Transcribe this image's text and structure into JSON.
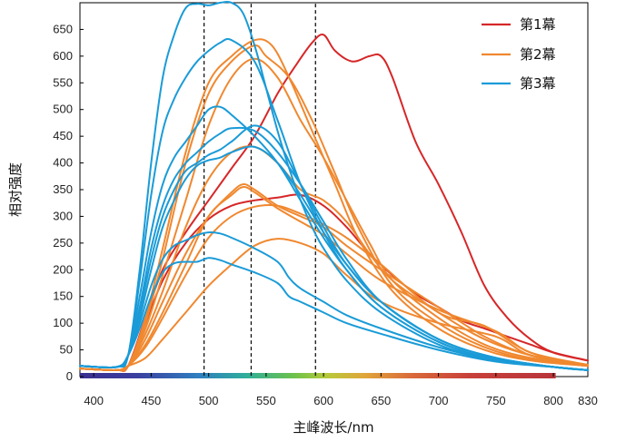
{
  "chart_data": {
    "type": "line",
    "title": "",
    "xlabel": "主峰波长/nm",
    "ylabel": "相对强度",
    "xlim": [
      388,
      830
    ],
    "ylim": [
      0,
      700
    ],
    "x_ticks": [
      400,
      450,
      500,
      550,
      600,
      650,
      700,
      750,
      800,
      830
    ],
    "y_ticks": [
      0,
      50,
      100,
      150,
      200,
      250,
      300,
      350,
      400,
      450,
      500,
      550,
      600,
      650
    ],
    "vertical_markers": [
      496,
      537,
      593
    ],
    "legend_position": "top-right",
    "legend": [
      {
        "name": "第1幕",
        "color": "#d62728"
      },
      {
        "name": "第2幕",
        "color": "#f0882f"
      },
      {
        "name": "第3幕",
        "color": "#1a9bd7"
      }
    ],
    "spectrum_bar": {
      "start": 388,
      "end": 802
    },
    "series": [
      {
        "name": "第1幕",
        "color": "#d62728",
        "x": [
          388,
          420,
          430,
          445,
          460,
          480,
          500,
          520,
          540,
          560,
          575,
          590,
          600,
          610,
          625,
          640,
          650,
          660,
          680,
          700,
          720,
          740,
          760,
          780,
          800,
          830
        ],
        "y": [
          15,
          12,
          20,
          110,
          200,
          270,
          330,
          390,
          450,
          530,
          580,
          625,
          640,
          610,
          590,
          600,
          600,
          560,
          440,
          360,
          270,
          170,
          110,
          70,
          45,
          30
        ]
      },
      {
        "name": "第1幕",
        "color": "#d62728",
        "x": [
          388,
          420,
          430,
          445,
          460,
          480,
          500,
          520,
          540,
          560,
          580,
          600,
          620,
          640,
          660,
          680,
          700,
          720,
          740,
          760,
          780,
          800,
          830
        ],
        "y": [
          15,
          12,
          20,
          100,
          180,
          250,
          295,
          320,
          330,
          335,
          340,
          320,
          280,
          230,
          190,
          155,
          130,
          105,
          90,
          75,
          60,
          45,
          30
        ]
      },
      {
        "name": "第2幕",
        "color": "#f0882f",
        "x": [
          388,
          420,
          430,
          445,
          460,
          480,
          500,
          520,
          540,
          555,
          570,
          590,
          610,
          630,
          660,
          700,
          740,
          780,
          830
        ],
        "y": [
          15,
          12,
          20,
          110,
          240,
          420,
          550,
          600,
          630,
          620,
          560,
          460,
          360,
          260,
          160,
          90,
          50,
          30,
          20
        ]
      },
      {
        "name": "第2幕",
        "color": "#f0882f",
        "x": [
          388,
          420,
          430,
          445,
          460,
          480,
          500,
          520,
          540,
          550,
          570,
          590,
          610,
          630,
          660,
          700,
          740,
          780,
          830
        ],
        "y": [
          15,
          12,
          20,
          100,
          220,
          400,
          530,
          590,
          620,
          600,
          560,
          480,
          380,
          280,
          170,
          100,
          55,
          32,
          20
        ]
      },
      {
        "name": "第2幕",
        "color": "#f0882f",
        "x": [
          388,
          420,
          430,
          445,
          460,
          480,
          500,
          520,
          540,
          560,
          580,
          600,
          620,
          640,
          660,
          700,
          740,
          780,
          830
        ],
        "y": [
          15,
          12,
          20,
          90,
          190,
          330,
          470,
          560,
          595,
          560,
          480,
          410,
          330,
          250,
          180,
          110,
          60,
          35,
          22
        ]
      },
      {
        "name": "第2幕",
        "color": "#f0882f",
        "x": [
          388,
          420,
          430,
          445,
          460,
          480,
          500,
          520,
          540,
          560,
          580,
          600,
          620,
          640,
          660,
          700,
          740,
          780,
          830
        ],
        "y": [
          15,
          12,
          20,
          80,
          160,
          280,
          370,
          420,
          430,
          400,
          350,
          330,
          290,
          230,
          180,
          120,
          70,
          40,
          22
        ]
      },
      {
        "name": "第2幕",
        "color": "#f0882f",
        "x": [
          388,
          420,
          430,
          445,
          460,
          480,
          500,
          520,
          530,
          540,
          560,
          580,
          600,
          620,
          650,
          700,
          740,
          780,
          830
        ],
        "y": [
          15,
          12,
          20,
          70,
          140,
          230,
          300,
          345,
          360,
          350,
          320,
          300,
          280,
          245,
          200,
          130,
          75,
          40,
          22
        ]
      },
      {
        "name": "第2幕",
        "color": "#f0882f",
        "x": [
          388,
          420,
          430,
          445,
          460,
          480,
          500,
          520,
          530,
          540,
          560,
          580,
          600,
          620,
          650,
          700,
          750,
          780,
          830
        ],
        "y": [
          15,
          12,
          20,
          60,
          120,
          210,
          300,
          340,
          355,
          345,
          315,
          290,
          265,
          230,
          180,
          125,
          85,
          45,
          22
        ]
      },
      {
        "name": "第2幕",
        "color": "#f0882f",
        "x": [
          388,
          420,
          430,
          445,
          460,
          480,
          500,
          520,
          540,
          560,
          580,
          600,
          620,
          650,
          700,
          740,
          780,
          830
        ],
        "y": [
          15,
          12,
          20,
          55,
          110,
          190,
          260,
          300,
          318,
          320,
          305,
          285,
          260,
          210,
          120,
          95,
          45,
          22
        ]
      },
      {
        "name": "第2幕",
        "color": "#f0882f",
        "x": [
          388,
          420,
          430,
          445,
          460,
          480,
          500,
          520,
          540,
          560,
          580,
          600,
          620,
          650,
          700,
          750,
          780,
          830
        ],
        "y": [
          15,
          12,
          20,
          35,
          70,
          120,
          170,
          210,
          245,
          258,
          250,
          230,
          190,
          140,
          100,
          75,
          40,
          20
        ]
      },
      {
        "name": "第3幕",
        "color": "#1a9bd7",
        "x": [
          388,
          420,
          430,
          440,
          450,
          460,
          470,
          480,
          490,
          500,
          510,
          520,
          530,
          540,
          550,
          560,
          570,
          580,
          590,
          600,
          620,
          650,
          700,
          750,
          800,
          830
        ],
        "y": [
          20,
          18,
          40,
          200,
          400,
          560,
          640,
          690,
          698,
          695,
          700,
          700,
          680,
          620,
          540,
          460,
          390,
          330,
          280,
          240,
          180,
          120,
          60,
          30,
          18,
          12
        ]
      },
      {
        "name": "第3幕",
        "color": "#1a9bd7",
        "x": [
          388,
          420,
          430,
          440,
          450,
          460,
          470,
          480,
          490,
          500,
          510,
          520,
          540,
          560,
          580,
          600,
          620,
          650,
          700,
          750,
          800,
          830
        ],
        "y": [
          20,
          18,
          40,
          180,
          340,
          460,
          520,
          560,
          590,
          610,
          625,
          630,
          590,
          480,
          360,
          270,
          200,
          130,
          65,
          32,
          18,
          12
        ]
      },
      {
        "name": "第3幕",
        "color": "#1a9bd7",
        "x": [
          388,
          420,
          430,
          440,
          450,
          460,
          470,
          480,
          490,
          500,
          510,
          520,
          540,
          560,
          580,
          600,
          620,
          650,
          700,
          750,
          800,
          830
        ],
        "y": [
          20,
          18,
          40,
          150,
          270,
          360,
          410,
          440,
          470,
          500,
          505,
          490,
          450,
          400,
          330,
          260,
          200,
          130,
          65,
          32,
          18,
          12
        ]
      },
      {
        "name": "第3幕",
        "color": "#1a9bd7",
        "x": [
          388,
          420,
          430,
          440,
          450,
          460,
          470,
          480,
          490,
          500,
          510,
          520,
          540,
          560,
          580,
          600,
          620,
          650,
          700,
          750,
          800,
          830
        ],
        "y": [
          20,
          18,
          40,
          130,
          240,
          320,
          370,
          400,
          420,
          440,
          455,
          465,
          460,
          420,
          360,
          290,
          220,
          140,
          70,
          35,
          18,
          12
        ]
      },
      {
        "name": "第3幕",
        "color": "#1a9bd7",
        "x": [
          388,
          420,
          430,
          440,
          450,
          460,
          470,
          480,
          490,
          500,
          510,
          520,
          540,
          560,
          580,
          600,
          620,
          650,
          700,
          750,
          800,
          830
        ],
        "y": [
          20,
          18,
          40,
          120,
          220,
          300,
          350,
          385,
          400,
          415,
          425,
          440,
          470,
          440,
          360,
          280,
          210,
          140,
          70,
          35,
          18,
          12
        ]
      },
      {
        "name": "第3幕",
        "color": "#1a9bd7",
        "x": [
          388,
          420,
          430,
          440,
          450,
          460,
          470,
          480,
          490,
          500,
          510,
          520,
          540,
          560,
          580,
          600,
          620,
          650,
          700,
          750,
          800,
          830
        ],
        "y": [
          20,
          18,
          40,
          110,
          200,
          280,
          330,
          370,
          395,
          405,
          410,
          420,
          430,
          400,
          340,
          270,
          210,
          140,
          70,
          35,
          18,
          12
        ]
      },
      {
        "name": "第3幕",
        "color": "#1a9bd7",
        "x": [
          388,
          420,
          430,
          440,
          450,
          460,
          470,
          480,
          490,
          500,
          510,
          520,
          540,
          560,
          570,
          580,
          600,
          620,
          650,
          700,
          750,
          800,
          830
        ],
        "y": [
          20,
          18,
          40,
          100,
          170,
          220,
          245,
          255,
          265,
          270,
          268,
          260,
          240,
          215,
          185,
          165,
          140,
          115,
          90,
          55,
          30,
          18,
          12
        ]
      },
      {
        "name": "第3幕",
        "color": "#1a9bd7",
        "x": [
          388,
          420,
          430,
          440,
          450,
          460,
          470,
          480,
          490,
          500,
          510,
          520,
          540,
          560,
          570,
          580,
          600,
          620,
          650,
          700,
          750,
          800,
          830
        ],
        "y": [
          20,
          18,
          40,
          90,
          150,
          195,
          212,
          215,
          215,
          222,
          218,
          210,
          195,
          175,
          150,
          140,
          120,
          100,
          80,
          50,
          28,
          18,
          12
        ]
      }
    ]
  }
}
